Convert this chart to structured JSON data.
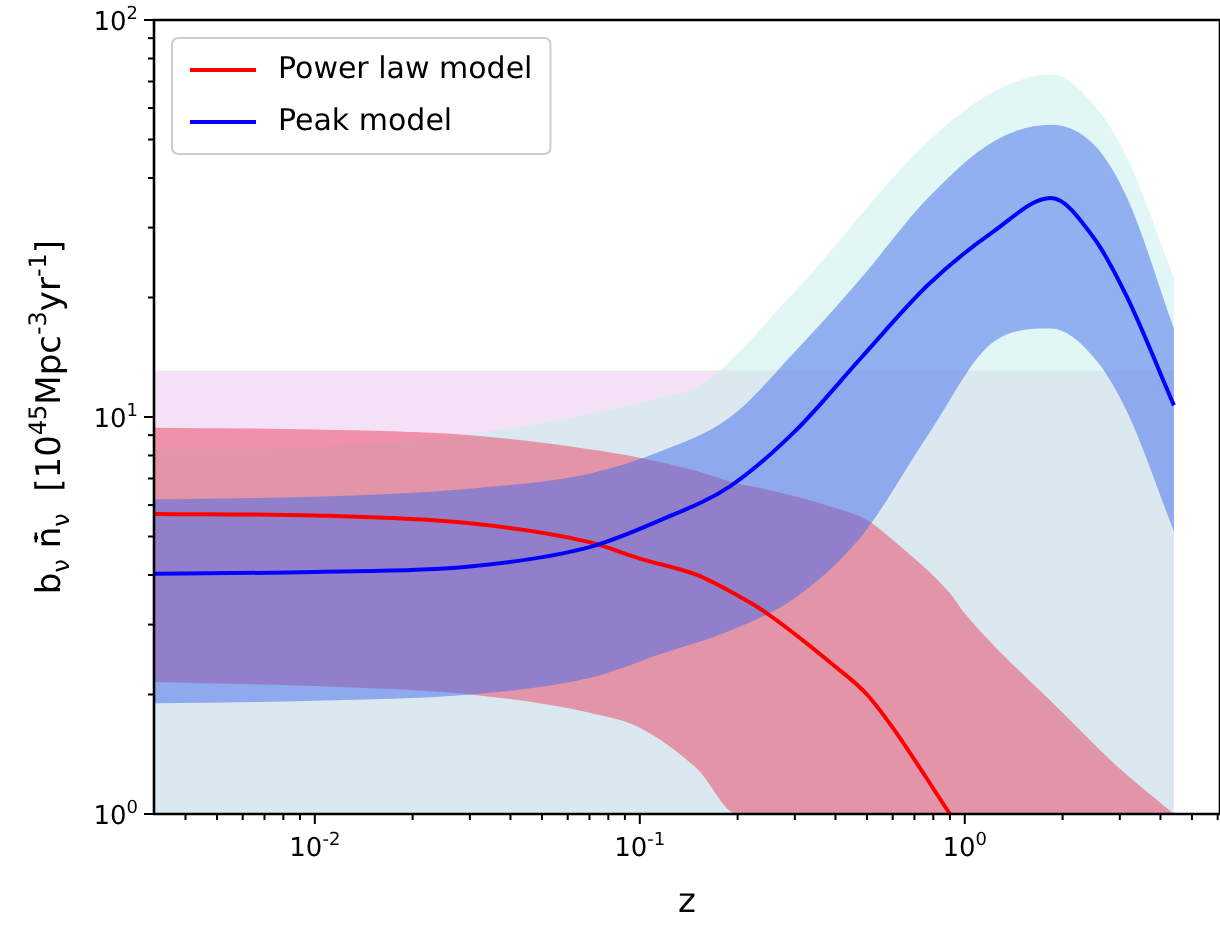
{
  "chart_data": {
    "type": "line",
    "xlabel": "z",
    "ylabel": "b$_{ν}$ n̄̇$_{ν}$  [10$^{45}$Mpc$^{-3}$yr$^{-1}$]",
    "log": "xy",
    "legend": "top left",
    "line_style": "solid",
    "xlim": [
      0.0032,
      6.1
    ],
    "ylim": [
      1,
      100
    ],
    "xticks": [
      {
        "value": 0.004,
        "label": null
      },
      {
        "value": 0.005,
        "label": null
      },
      {
        "value": 0.006,
        "label": null
      },
      {
        "value": 0.007,
        "label": null
      },
      {
        "value": 0.008,
        "label": null
      },
      {
        "value": 0.009,
        "label": null
      },
      {
        "value": 0.01,
        "label": "10$^{-2}$"
      },
      {
        "value": 0.02,
        "label": null
      },
      {
        "value": 0.03,
        "label": null
      },
      {
        "value": 0.04,
        "label": null
      },
      {
        "value": 0.05,
        "label": null
      },
      {
        "value": 0.06,
        "label": null
      },
      {
        "value": 0.07,
        "label": null
      },
      {
        "value": 0.08,
        "label": null
      },
      {
        "value": 0.09,
        "label": null
      },
      {
        "value": 0.1,
        "label": "10$^{-1}$"
      },
      {
        "value": 0.2,
        "label": null
      },
      {
        "value": 0.3,
        "label": null
      },
      {
        "value": 0.4,
        "label": null
      },
      {
        "value": 0.5,
        "label": null
      },
      {
        "value": 0.6,
        "label": null
      },
      {
        "value": 0.7,
        "label": null
      },
      {
        "value": 0.8,
        "label": null
      },
      {
        "value": 0.9,
        "label": null
      },
      {
        "value": 1,
        "label": "10$^{0}$"
      },
      {
        "value": 2,
        "label": null
      },
      {
        "value": 3,
        "label": null
      },
      {
        "value": 4,
        "label": null
      },
      {
        "value": 5,
        "label": null
      },
      {
        "value": 6,
        "label": null
      }
    ],
    "yticks": [
      {
        "value": 1,
        "label": "10$^{0}$"
      },
      {
        "value": 2,
        "label": null
      },
      {
        "value": 3,
        "label": null
      },
      {
        "value": 4,
        "label": null
      },
      {
        "value": 5,
        "label": null
      },
      {
        "value": 6,
        "label": null
      },
      {
        "value": 7,
        "label": null
      },
      {
        "value": 8,
        "label": null
      },
      {
        "value": 9,
        "label": null
      },
      {
        "value": 10,
        "label": "10$^{1}$"
      },
      {
        "value": 20,
        "label": null
      },
      {
        "value": 30,
        "label": null
      },
      {
        "value": 40,
        "label": null
      },
      {
        "value": 50,
        "label": null
      },
      {
        "value": 60,
        "label": null
      },
      {
        "value": 70,
        "label": null
      },
      {
        "value": 80,
        "label": null
      },
      {
        "value": 90,
        "label": null
      },
      {
        "value": 100,
        "label": "10$^{2}$"
      }
    ],
    "series": [
      {
        "type": "area",
        "color": "#ebc3eb",
        "x": [
          0.0032,
          4.4
        ],
        "values": [
          13.1,
          13.1
        ]
      },
      {
        "type": "area",
        "color": "#c1efeb",
        "x": [
          0.0032,
          0.01,
          0.041,
          0.116,
          0.155,
          0.3,
          0.77,
          1.23,
          1.84,
          2.5,
          3.16,
          4.4
        ],
        "values": [
          8.3,
          8.4,
          9.4,
          11.2,
          12.1,
          20.7,
          49.5,
          66,
          73,
          61,
          45,
          22.4
        ]
      },
      {
        "name": "Power law model",
        "color": "#ff0000",
        "x": [
          0.0032,
          0.01,
          0.03,
          0.07,
          0.1,
          0.15,
          0.2,
          0.24,
          0.4,
          0.5,
          0.6,
          0.9,
          1,
          2,
          3,
          4.4
        ],
        "values": [
          5.7,
          5.65,
          5.4,
          4.84,
          4.4,
          4.0,
          3.55,
          3.25,
          2.35,
          2.0,
          1.65,
          1.0,
          null,
          null,
          null,
          null
        ],
        "lower": [
          2.15,
          2.1,
          2.0,
          1.8,
          1.65,
          1.3,
          1.0,
          1,
          1,
          1,
          1,
          1,
          1,
          1,
          1,
          1
        ],
        "upper": [
          9.4,
          9.3,
          9.0,
          8.3,
          7.9,
          7.3,
          6.8,
          6.6,
          5.9,
          5.5,
          4.9,
          3.6,
          3.2,
          1.8,
          1.3,
          1.0
        ]
      },
      {
        "name": "Peak model",
        "color": "#0000ff",
        "x": [
          0.0032,
          0.01,
          0.03,
          0.07,
          0.116,
          0.19,
          0.3,
          0.48,
          0.77,
          1.23,
          1.84,
          2.5,
          3.16,
          4.4
        ],
        "values": [
          4.03,
          4.07,
          4.2,
          4.7,
          5.5,
          6.7,
          9.2,
          14.1,
          21.5,
          29.4,
          35.6,
          28.2,
          20,
          10.7
        ],
        "lower": [
          1.9,
          1.93,
          2.0,
          2.2,
          2.53,
          2.9,
          3.5,
          5.0,
          9.0,
          15.5,
          16.7,
          14.1,
          10.3,
          5.15
        ],
        "upper": [
          6.2,
          6.3,
          6.6,
          7.2,
          8.2,
          10.0,
          14.6,
          22.4,
          35.6,
          49.5,
          54.5,
          48.5,
          35.6,
          16.7
        ]
      }
    ]
  }
}
